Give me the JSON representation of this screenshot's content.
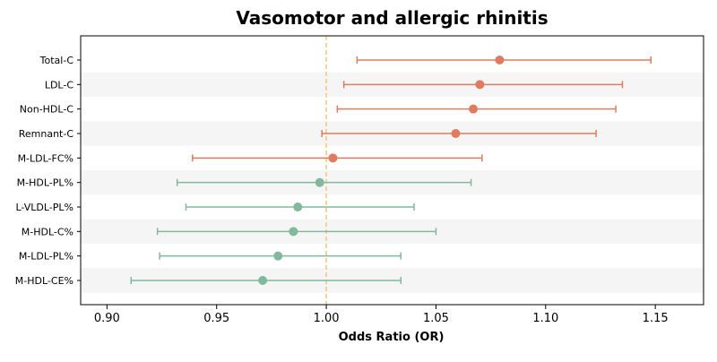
{
  "chart_data": {
    "type": "forest",
    "title": "Vasomotor and allergic rhinitis",
    "xlabel": "Odds Ratio (OR)",
    "ylabel": "",
    "xlim": [
      0.888,
      1.172
    ],
    "xticks": [
      0.9,
      0.95,
      1.0,
      1.05,
      1.1,
      1.15
    ],
    "xtick_labels": [
      "0.90",
      "0.95",
      "1.00",
      "1.05",
      "1.10",
      "1.15"
    ],
    "reference_line": 1.0,
    "grid": false,
    "colors": {
      "positive": "#e07b5f",
      "negative": "#82b89b",
      "reference_line": "#f2c879",
      "band": "#f5f5f5"
    },
    "rows": [
      {
        "label": "Total-C",
        "or": 1.079,
        "lower": 1.014,
        "upper": 1.148,
        "group": "positive"
      },
      {
        "label": "LDL-C",
        "or": 1.07,
        "lower": 1.008,
        "upper": 1.135,
        "group": "positive"
      },
      {
        "label": "Non-HDL-C",
        "or": 1.067,
        "lower": 1.005,
        "upper": 1.132,
        "group": "positive"
      },
      {
        "label": "Remnant-C",
        "or": 1.059,
        "lower": 0.998,
        "upper": 1.123,
        "group": "positive"
      },
      {
        "label": "M-LDL-FC%",
        "or": 1.003,
        "lower": 0.939,
        "upper": 1.071,
        "group": "positive"
      },
      {
        "label": "M-HDL-PL%",
        "or": 0.997,
        "lower": 0.932,
        "upper": 1.066,
        "group": "negative"
      },
      {
        "label": "L-VLDL-PL%",
        "or": 0.987,
        "lower": 0.936,
        "upper": 1.04,
        "group": "negative"
      },
      {
        "label": "M-HDL-C%",
        "or": 0.985,
        "lower": 0.923,
        "upper": 1.05,
        "group": "negative"
      },
      {
        "label": "M-LDL-PL%",
        "or": 0.978,
        "lower": 0.924,
        "upper": 1.034,
        "group": "negative"
      },
      {
        "label": "M-HDL-CE%",
        "or": 0.971,
        "lower": 0.911,
        "upper": 1.034,
        "group": "negative"
      }
    ]
  }
}
